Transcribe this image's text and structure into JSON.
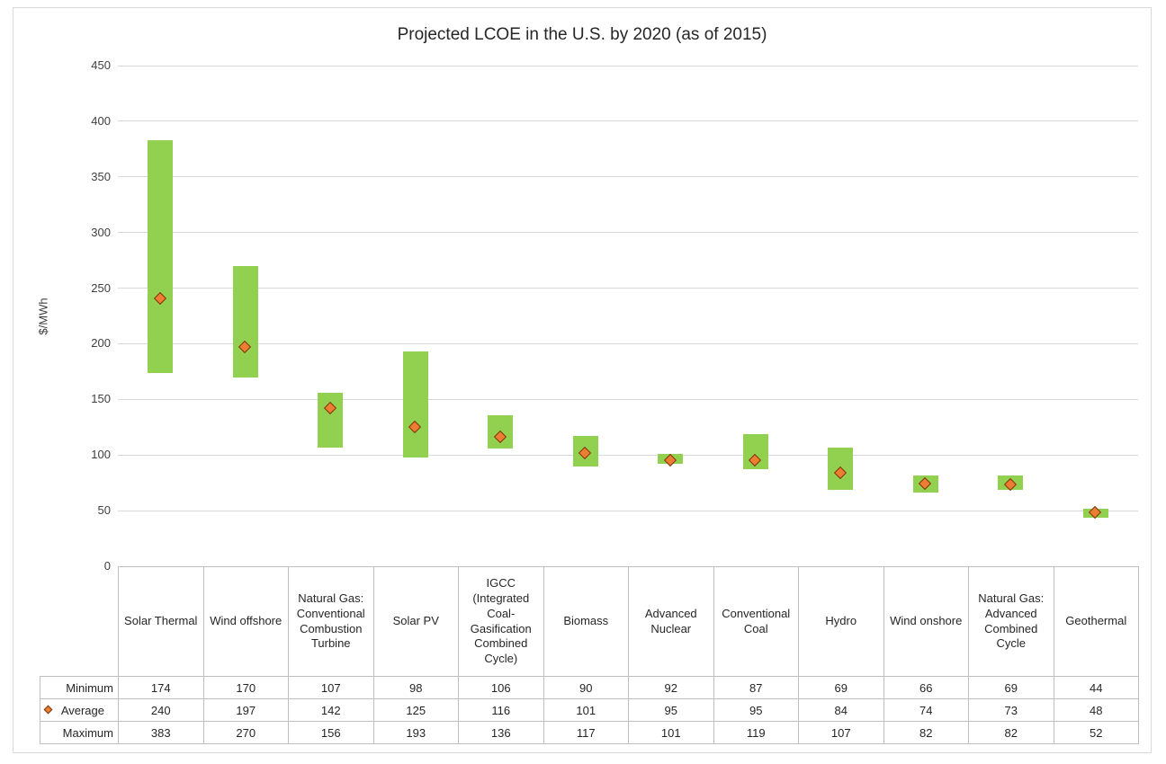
{
  "chart_data": {
    "type": "bar",
    "variant": "floating-range-bars-with-average-marker",
    "title": "Projected LCOE in the U.S. by 2020 (as of 2015)",
    "xlabel": "",
    "ylabel": "$/MWh",
    "ylim": [
      0,
      450
    ],
    "ytick_step": 50,
    "grid": "horizontal",
    "legend_position": "data-table-row-keys",
    "categories": [
      "Solar Thermal",
      "Wind offshore",
      "Natural Gas: Conventional Combustion Turbine",
      "Solar PV",
      "IGCC (Integrated Coal-Gasification Combined Cycle)",
      "Biomass",
      "Advanced Nuclear",
      "Conventional Coal",
      "Hydro",
      "Wind onshore",
      "Natural Gas: Advanced Combined Cycle",
      "Geothermal"
    ],
    "series": [
      {
        "name": "Minimum",
        "marker": "none",
        "values": [
          174,
          170,
          107,
          98,
          106,
          90,
          92,
          87,
          69,
          66,
          69,
          44
        ]
      },
      {
        "name": "Average",
        "marker": "diamond",
        "values": [
          240,
          197,
          142,
          125,
          116,
          101,
          95,
          95,
          84,
          74,
          73,
          48
        ]
      },
      {
        "name": "Maximum",
        "marker": "none",
        "values": [
          383,
          270,
          156,
          193,
          136,
          117,
          101,
          119,
          107,
          82,
          82,
          52
        ]
      }
    ],
    "colors": {
      "range_bar": "#92D050",
      "average_marker_fill": "#ED7D31",
      "average_marker_border": "#7A3A10",
      "gridline": "#D9D9D9",
      "table_border": "#BFBFBF",
      "axis_text": "#404040",
      "title_text": "#262626"
    }
  }
}
